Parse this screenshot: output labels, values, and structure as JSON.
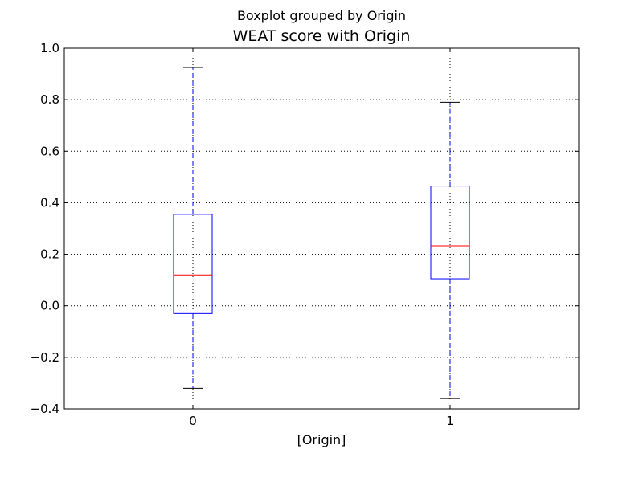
{
  "chart_data": {
    "type": "boxplot",
    "suptitle": "Boxplot grouped by Origin",
    "title": "WEAT score with Origin",
    "xlabel": "[Origin]",
    "ylabel": "",
    "categories": [
      "0",
      "1"
    ],
    "ylim": [
      -0.4,
      1.0
    ],
    "yticks": [
      "−0.4",
      "−0.2",
      "0.0",
      "0.2",
      "0.4",
      "0.6",
      "0.8",
      "1.0"
    ],
    "grid": true,
    "boxes": [
      {
        "category": "0",
        "whisker_low": -0.32,
        "q1": -0.03,
        "median": 0.12,
        "q3": 0.355,
        "whisker_high": 0.925
      },
      {
        "category": "1",
        "whisker_low": -0.36,
        "q1": 0.105,
        "median": 0.233,
        "q3": 0.465,
        "whisker_high": 0.79
      }
    ],
    "colors": {
      "box": "#0000ff",
      "median": "#ff0000",
      "cap": "#000000",
      "grid": "#000000"
    }
  }
}
